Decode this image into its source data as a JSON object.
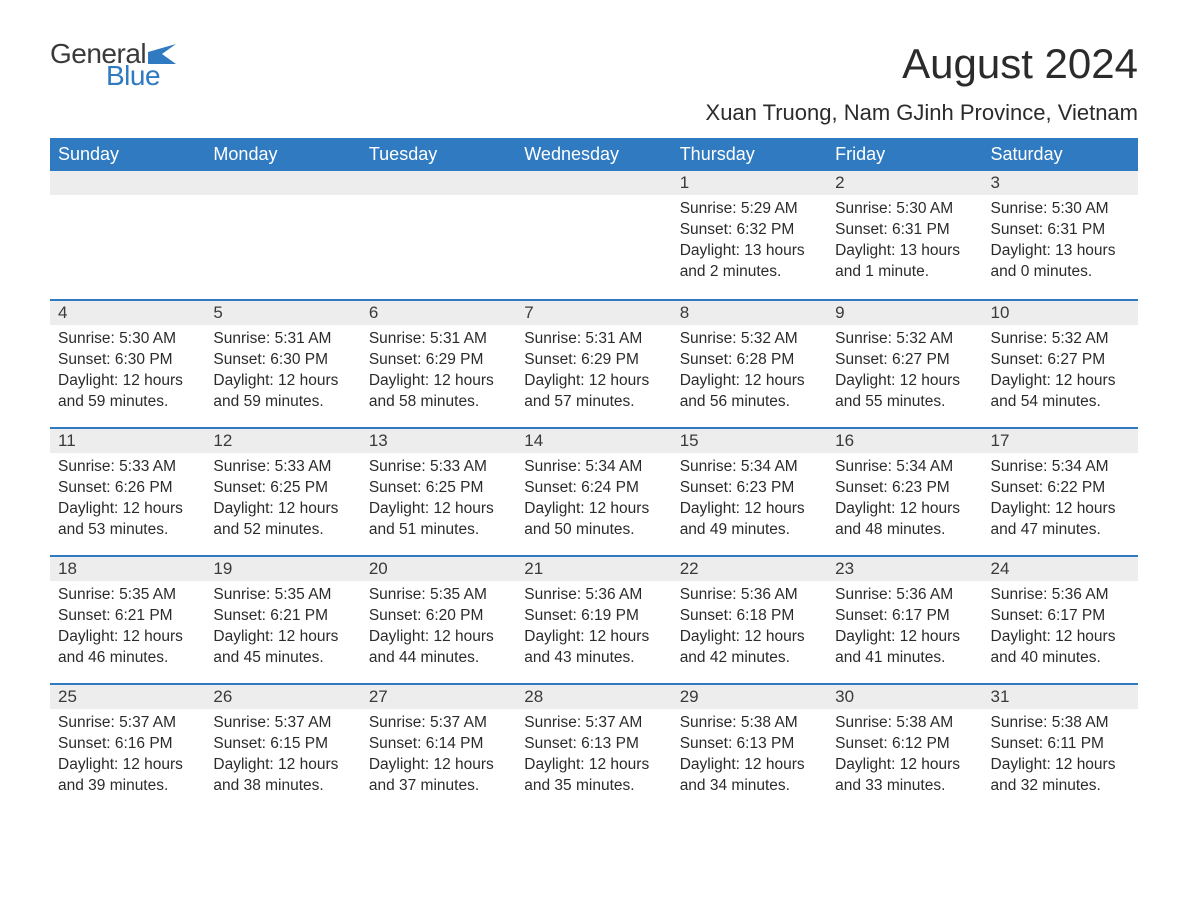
{
  "logo": {
    "text1": "General",
    "text2": "Blue",
    "flag_color": "#2f7ac0"
  },
  "title": "August 2024",
  "location": "Xuan Truong, Nam GJinh Province, Vietnam",
  "colors": {
    "header_bg": "#2f7ac0",
    "header_text": "#ffffff",
    "day_border": "#2f7ac0",
    "daynum_bg": "#ededed",
    "text": "#2b2b2b"
  },
  "weekdays": [
    "Sunday",
    "Monday",
    "Tuesday",
    "Wednesday",
    "Thursday",
    "Friday",
    "Saturday"
  ],
  "weeks": [
    [
      null,
      null,
      null,
      null,
      {
        "n": "1",
        "sr": "5:29 AM",
        "ss": "6:32 PM",
        "dl": "13 hours and 2 minutes."
      },
      {
        "n": "2",
        "sr": "5:30 AM",
        "ss": "6:31 PM",
        "dl": "13 hours and 1 minute."
      },
      {
        "n": "3",
        "sr": "5:30 AM",
        "ss": "6:31 PM",
        "dl": "13 hours and 0 minutes."
      }
    ],
    [
      {
        "n": "4",
        "sr": "5:30 AM",
        "ss": "6:30 PM",
        "dl": "12 hours and 59 minutes."
      },
      {
        "n": "5",
        "sr": "5:31 AM",
        "ss": "6:30 PM",
        "dl": "12 hours and 59 minutes."
      },
      {
        "n": "6",
        "sr": "5:31 AM",
        "ss": "6:29 PM",
        "dl": "12 hours and 58 minutes."
      },
      {
        "n": "7",
        "sr": "5:31 AM",
        "ss": "6:29 PM",
        "dl": "12 hours and 57 minutes."
      },
      {
        "n": "8",
        "sr": "5:32 AM",
        "ss": "6:28 PM",
        "dl": "12 hours and 56 minutes."
      },
      {
        "n": "9",
        "sr": "5:32 AM",
        "ss": "6:27 PM",
        "dl": "12 hours and 55 minutes."
      },
      {
        "n": "10",
        "sr": "5:32 AM",
        "ss": "6:27 PM",
        "dl": "12 hours and 54 minutes."
      }
    ],
    [
      {
        "n": "11",
        "sr": "5:33 AM",
        "ss": "6:26 PM",
        "dl": "12 hours and 53 minutes."
      },
      {
        "n": "12",
        "sr": "5:33 AM",
        "ss": "6:25 PM",
        "dl": "12 hours and 52 minutes."
      },
      {
        "n": "13",
        "sr": "5:33 AM",
        "ss": "6:25 PM",
        "dl": "12 hours and 51 minutes."
      },
      {
        "n": "14",
        "sr": "5:34 AM",
        "ss": "6:24 PM",
        "dl": "12 hours and 50 minutes."
      },
      {
        "n": "15",
        "sr": "5:34 AM",
        "ss": "6:23 PM",
        "dl": "12 hours and 49 minutes."
      },
      {
        "n": "16",
        "sr": "5:34 AM",
        "ss": "6:23 PM",
        "dl": "12 hours and 48 minutes."
      },
      {
        "n": "17",
        "sr": "5:34 AM",
        "ss": "6:22 PM",
        "dl": "12 hours and 47 minutes."
      }
    ],
    [
      {
        "n": "18",
        "sr": "5:35 AM",
        "ss": "6:21 PM",
        "dl": "12 hours and 46 minutes."
      },
      {
        "n": "19",
        "sr": "5:35 AM",
        "ss": "6:21 PM",
        "dl": "12 hours and 45 minutes."
      },
      {
        "n": "20",
        "sr": "5:35 AM",
        "ss": "6:20 PM",
        "dl": "12 hours and 44 minutes."
      },
      {
        "n": "21",
        "sr": "5:36 AM",
        "ss": "6:19 PM",
        "dl": "12 hours and 43 minutes."
      },
      {
        "n": "22",
        "sr": "5:36 AM",
        "ss": "6:18 PM",
        "dl": "12 hours and 42 minutes."
      },
      {
        "n": "23",
        "sr": "5:36 AM",
        "ss": "6:17 PM",
        "dl": "12 hours and 41 minutes."
      },
      {
        "n": "24",
        "sr": "5:36 AM",
        "ss": "6:17 PM",
        "dl": "12 hours and 40 minutes."
      }
    ],
    [
      {
        "n": "25",
        "sr": "5:37 AM",
        "ss": "6:16 PM",
        "dl": "12 hours and 39 minutes."
      },
      {
        "n": "26",
        "sr": "5:37 AM",
        "ss": "6:15 PM",
        "dl": "12 hours and 38 minutes."
      },
      {
        "n": "27",
        "sr": "5:37 AM",
        "ss": "6:14 PM",
        "dl": "12 hours and 37 minutes."
      },
      {
        "n": "28",
        "sr": "5:37 AM",
        "ss": "6:13 PM",
        "dl": "12 hours and 35 minutes."
      },
      {
        "n": "29",
        "sr": "5:38 AM",
        "ss": "6:13 PM",
        "dl": "12 hours and 34 minutes."
      },
      {
        "n": "30",
        "sr": "5:38 AM",
        "ss": "6:12 PM",
        "dl": "12 hours and 33 minutes."
      },
      {
        "n": "31",
        "sr": "5:38 AM",
        "ss": "6:11 PM",
        "dl": "12 hours and 32 minutes."
      }
    ]
  ],
  "labels": {
    "sunrise": "Sunrise: ",
    "sunset": "Sunset: ",
    "daylight": "Daylight: "
  }
}
